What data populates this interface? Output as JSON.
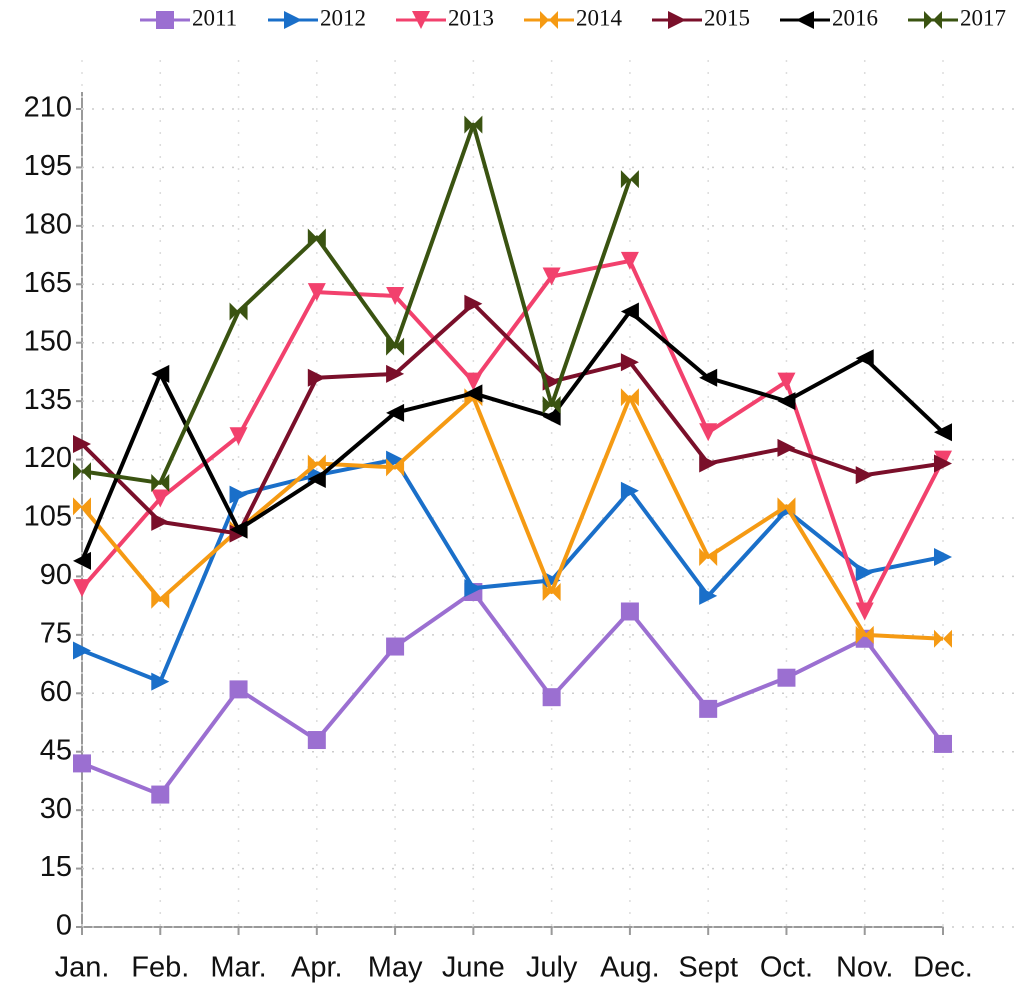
{
  "chart_data": {
    "type": "line",
    "categories": [
      "Jan.",
      "Feb.",
      "Mar.",
      "Apr.",
      "May",
      "June",
      "July",
      "Aug.",
      "Sept",
      "Oct.",
      "Nov.",
      "Dec."
    ],
    "ylim": [
      0,
      210
    ],
    "yticks": [
      0,
      15,
      30,
      45,
      60,
      75,
      90,
      105,
      120,
      135,
      150,
      165,
      180,
      195,
      210
    ],
    "grid": true,
    "legend": "top",
    "series": [
      {
        "name": "2011",
        "color": "#9b6fd1",
        "marker": "square",
        "values": [
          42,
          34,
          61,
          48,
          72,
          86,
          59,
          81,
          56,
          64,
          74,
          47
        ]
      },
      {
        "name": "2012",
        "color": "#1a6fc9",
        "marker": "triangle-right",
        "values": [
          71,
          63,
          111,
          116,
          120,
          87,
          89,
          112,
          85,
          107,
          91,
          95
        ]
      },
      {
        "name": "2013",
        "color": "#f2416d",
        "marker": "triangle-down",
        "values": [
          87,
          110,
          126,
          163,
          162,
          140,
          167,
          171,
          127,
          140,
          81,
          120
        ]
      },
      {
        "name": "2014",
        "color": "#f59a13",
        "marker": "bowtie",
        "values": [
          108,
          84,
          102,
          119,
          118,
          136,
          86,
          136,
          95,
          108,
          75,
          74
        ]
      },
      {
        "name": "2015",
        "color": "#7a0f2a",
        "marker": "triangle-right",
        "values": [
          124,
          104,
          101,
          141,
          142,
          160,
          140,
          145,
          119,
          123,
          116,
          119
        ]
      },
      {
        "name": "2016",
        "color": "#000000",
        "marker": "triangle-left",
        "values": [
          94,
          142,
          102,
          115,
          132,
          137,
          131,
          158,
          141,
          135,
          146,
          127
        ]
      },
      {
        "name": "2017",
        "color": "#3a5311",
        "marker": "bowtie",
        "values": [
          117,
          114,
          158,
          177,
          149,
          206,
          134,
          192,
          null,
          null,
          null,
          null
        ]
      }
    ]
  }
}
